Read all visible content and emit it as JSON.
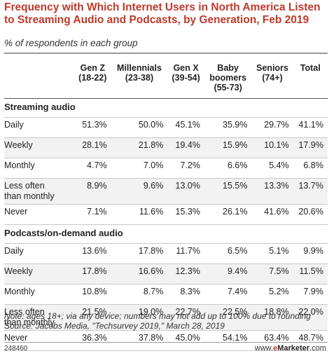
{
  "title": "Frequency with Which Internet Users in North America Listen to Streaming Audio and Podcasts, by Generation, Feb 2019",
  "subtitle": "% of respondents in each group",
  "note": "Note: ages 18+; via any device; numbers may not add up to 100% due to rounding",
  "source": "Source: Jacobs Media, \"Techsurvey 2019,\" March 28, 2019",
  "footer_id": "248460",
  "brand": {
    "prefix": "www.",
    "e": "e",
    "name": "Marketer",
    "suffix": ".com"
  },
  "chart_data": {
    "type": "table",
    "columns": [
      {
        "line1": "Gen Z",
        "line2": "(18-22)",
        "line3": ""
      },
      {
        "line1": "Millennials",
        "line2": "(23-38)",
        "line3": ""
      },
      {
        "line1": "Gen X",
        "line2": "(39-54)",
        "line3": ""
      },
      {
        "line1": "Baby",
        "line2": "boomers",
        "line3": "(55-73)"
      },
      {
        "line1": "Seniors",
        "line2": "(74+)",
        "line3": ""
      },
      {
        "line1": "Total",
        "line2": "",
        "line3": ""
      }
    ],
    "sections": [
      {
        "name": "Streaming audio",
        "rows": [
          {
            "label": "Daily",
            "label2": "",
            "values": [
              "51.3%",
              "50.0%",
              "45.1%",
              "35.9%",
              "29.7%",
              "41.1%"
            ]
          },
          {
            "label": "Weekly",
            "label2": "",
            "values": [
              "28.1%",
              "21.8%",
              "19.4%",
              "15.9%",
              "10.1%",
              "17.9%"
            ]
          },
          {
            "label": "Monthly",
            "label2": "",
            "values": [
              "4.7%",
              "7.0%",
              "7.2%",
              "6.6%",
              "5.4%",
              "6.8%"
            ]
          },
          {
            "label": "Less often",
            "label2": "than monthly",
            "values": [
              "8.9%",
              "9.6%",
              "13.0%",
              "15.5%",
              "13.3%",
              "13.7%"
            ]
          },
          {
            "label": "Never",
            "label2": "",
            "values": [
              "7.1%",
              "11.6%",
              "15.3%",
              "26.1%",
              "41.6%",
              "20.6%"
            ]
          }
        ]
      },
      {
        "name": "Podcasts/on-demand audio",
        "rows": [
          {
            "label": "Daily",
            "label2": "",
            "values": [
              "13.6%",
              "17.8%",
              "11.7%",
              "6.5%",
              "5.1%",
              "9.9%"
            ]
          },
          {
            "label": "Weekly",
            "label2": "",
            "values": [
              "17.8%",
              "16.6%",
              "12.3%",
              "9.4%",
              "7.5%",
              "11.5%"
            ]
          },
          {
            "label": "Monthly",
            "label2": "",
            "values": [
              "10.8%",
              "8.7%",
              "8.3%",
              "7.4%",
              "5.2%",
              "7.9%"
            ]
          },
          {
            "label": "Less often",
            "label2": "than monthly",
            "values": [
              "21.5%",
              "19.0%",
              "22.7%",
              "22.5%",
              "18.8%",
              "22.0%"
            ]
          },
          {
            "label": "Never",
            "label2": "",
            "values": [
              "36.3%",
              "37.8%",
              "45.0%",
              "54.1%",
              "63.4%",
              "48.7%"
            ]
          }
        ]
      }
    ]
  }
}
